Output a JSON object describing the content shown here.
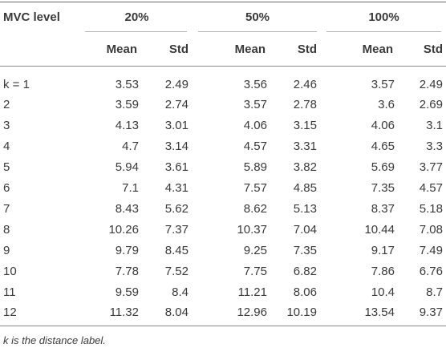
{
  "table": {
    "header": {
      "row_label": "MVC level",
      "groups": [
        "20%",
        "50%",
        "100%"
      ],
      "subheaders": [
        "Mean",
        "Std",
        "Mean",
        "Std",
        "Mean",
        "Std"
      ]
    },
    "rows": [
      {
        "k": "k = 1",
        "values": [
          "3.53",
          "2.49",
          "3.56",
          "2.46",
          "3.57",
          "2.49"
        ]
      },
      {
        "k": "2",
        "values": [
          "3.59",
          "2.74",
          "3.57",
          "2.78",
          "3.6",
          "2.69"
        ]
      },
      {
        "k": "3",
        "values": [
          "4.13",
          "3.01",
          "4.06",
          "3.15",
          "4.06",
          "3.1"
        ]
      },
      {
        "k": "4",
        "values": [
          "4.7",
          "3.14",
          "4.57",
          "3.31",
          "4.65",
          "3.3"
        ]
      },
      {
        "k": "5",
        "values": [
          "5.94",
          "3.61",
          "5.89",
          "3.82",
          "5.69",
          "3.77"
        ]
      },
      {
        "k": "6",
        "values": [
          "7.1",
          "4.31",
          "7.57",
          "4.85",
          "7.35",
          "4.57"
        ]
      },
      {
        "k": "7",
        "values": [
          "8.43",
          "5.62",
          "8.62",
          "5.13",
          "8.37",
          "5.18"
        ]
      },
      {
        "k": "8",
        "values": [
          "10.26",
          "7.37",
          "10.37",
          "7.04",
          "10.44",
          "7.08"
        ]
      },
      {
        "k": "9",
        "values": [
          "9.79",
          "8.45",
          "9.25",
          "7.35",
          "9.17",
          "7.49"
        ]
      },
      {
        "k": "10",
        "values": [
          "7.78",
          "7.52",
          "7.75",
          "6.82",
          "7.86",
          "6.76"
        ]
      },
      {
        "k": "11",
        "values": [
          "9.59",
          "8.4",
          "11.21",
          "8.06",
          "10.4",
          "8.7"
        ]
      },
      {
        "k": "12",
        "values": [
          "11.32",
          "8.04",
          "12.96",
          "10.19",
          "13.54",
          "9.37"
        ]
      }
    ],
    "footnote": "k is the distance label."
  }
}
